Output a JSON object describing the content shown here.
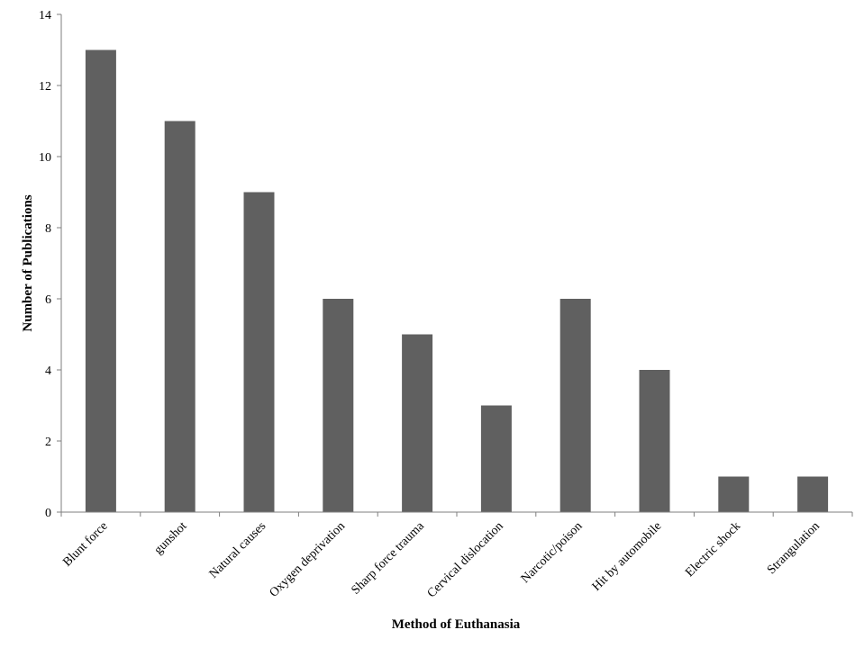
{
  "colors": {
    "bar": "#606060",
    "axis": "#7f7f7f",
    "text": "#000000",
    "background": "#ffffff"
  },
  "chart_data": {
    "type": "bar",
    "title": "",
    "xlabel": "Method of Euthanasia",
    "ylabel": "Number  of Publications",
    "ylim": [
      0,
      14
    ],
    "yticks": [
      "0",
      "2",
      "4",
      "6",
      "8",
      "10",
      "12",
      "14"
    ],
    "grid": false,
    "legend": "none",
    "categories": [
      "Blunt force",
      "gunshot",
      "Natural causes",
      "Oxygen deprivation",
      "Sharp force trauma",
      "Cervical dislocation",
      "Narcotic/poison",
      "Hit by automobile",
      "Electric shock",
      "Strangulation"
    ],
    "values": [
      13,
      11,
      9,
      6,
      5,
      3,
      6,
      4,
      1,
      1
    ]
  }
}
